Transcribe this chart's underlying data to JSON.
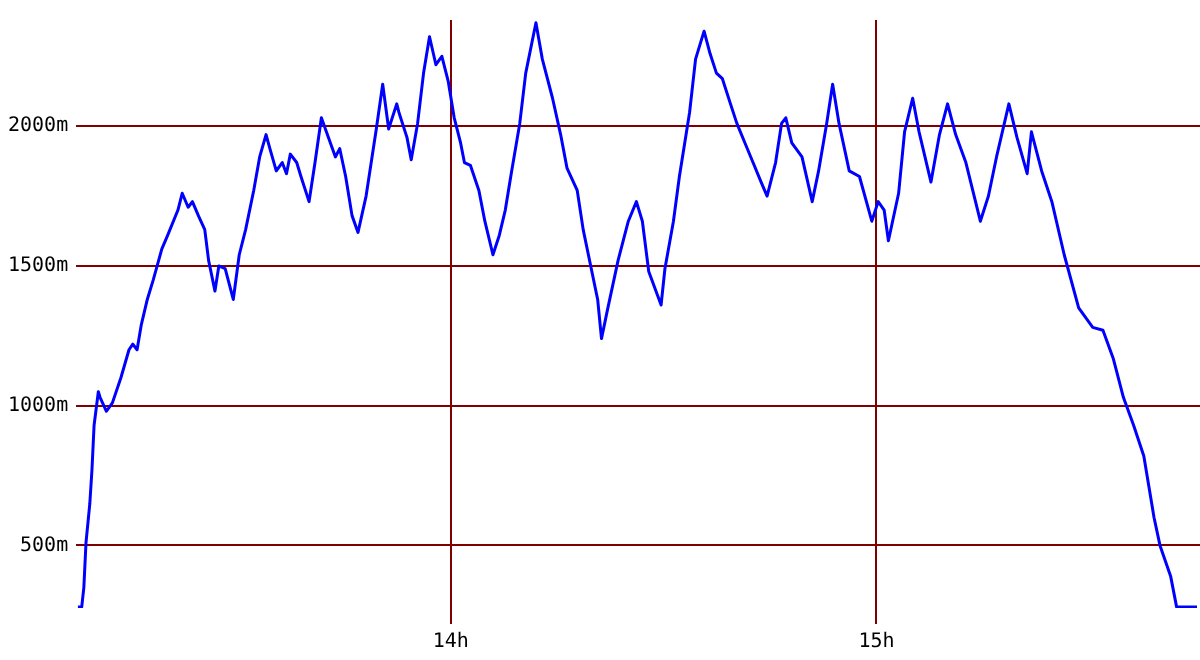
{
  "chart_data": {
    "type": "line",
    "xlim": [
      13.12,
      15.76
    ],
    "ylim": [
      276,
      2380
    ],
    "xticks": [
      {
        "value": 14,
        "label": "14h"
      },
      {
        "value": 15,
        "label": "15h"
      }
    ],
    "yticks": [
      {
        "value": 500,
        "label": "500m"
      },
      {
        "value": 1000,
        "label": "1000m"
      },
      {
        "value": 1500,
        "label": "1500m"
      },
      {
        "value": 2000,
        "label": "2000m"
      }
    ],
    "grid": true,
    "legend": false,
    "marker": "none",
    "line_style": "solid",
    "series": [
      {
        "color": "#0000ff",
        "x": [
          13.124,
          13.133,
          13.138,
          13.143,
          13.152,
          13.157,
          13.162,
          13.172,
          13.176,
          13.191,
          13.205,
          13.225,
          13.244,
          13.253,
          13.263,
          13.273,
          13.287,
          13.301,
          13.321,
          13.335,
          13.359,
          13.369,
          13.383,
          13.393,
          13.407,
          13.422,
          13.431,
          13.446,
          13.455,
          13.47,
          13.489,
          13.503,
          13.518,
          13.537,
          13.551,
          13.566,
          13.575,
          13.59,
          13.604,
          13.614,
          13.623,
          13.638,
          13.648,
          13.667,
          13.681,
          13.696,
          13.71,
          13.729,
          13.739,
          13.753,
          13.768,
          13.782,
          13.801,
          13.825,
          13.84,
          13.854,
          13.873,
          13.878,
          13.897,
          13.907,
          13.922,
          13.936,
          13.95,
          13.965,
          13.979,
          13.994,
          14.008,
          14.023,
          14.032,
          14.046,
          14.066,
          14.08,
          14.099,
          14.114,
          14.128,
          14.143,
          14.162,
          14.176,
          14.2,
          14.215,
          14.239,
          14.258,
          14.273,
          14.297,
          14.311,
          14.33,
          14.345,
          14.354,
          14.369,
          14.393,
          14.417,
          14.436,
          14.45,
          14.465,
          14.494,
          14.503,
          14.523,
          14.537,
          14.561,
          14.575,
          14.595,
          14.609,
          14.624,
          14.638,
          14.657,
          14.672,
          14.691,
          14.71,
          14.729,
          14.743,
          14.763,
          14.777,
          14.787,
          14.801,
          14.825,
          14.849,
          14.864,
          14.883,
          14.897,
          14.912,
          14.936,
          14.96,
          14.989,
          15.004,
          15.018,
          15.028,
          15.052,
          15.066,
          15.085,
          15.1,
          15.128,
          15.148,
          15.167,
          15.186,
          15.21,
          15.244,
          15.263,
          15.282,
          15.311,
          15.33,
          15.354,
          15.364,
          15.388,
          15.412,
          15.441,
          15.475,
          15.508,
          15.532,
          15.556,
          15.58,
          15.604,
          15.628,
          15.652,
          15.666,
          15.691,
          15.705,
          15.753
        ],
        "values": [
          280,
          280,
          350,
          510,
          650,
          770,
          930,
          1050,
          1030,
          980,
          1010,
          1100,
          1200,
          1220,
          1200,
          1290,
          1380,
          1450,
          1560,
          1610,
          1700,
          1760,
          1710,
          1730,
          1680,
          1630,
          1520,
          1410,
          1500,
          1490,
          1380,
          1540,
          1630,
          1770,
          1890,
          1970,
          1920,
          1840,
          1870,
          1830,
          1900,
          1870,
          1820,
          1730,
          1870,
          2030,
          1970,
          1890,
          1920,
          1820,
          1680,
          1620,
          1750,
          1990,
          2150,
          1990,
          2080,
          2050,
          1960,
          1880,
          2010,
          2190,
          2320,
          2220,
          2250,
          2160,
          2030,
          1940,
          1870,
          1860,
          1770,
          1660,
          1540,
          1610,
          1700,
          1840,
          2010,
          2190,
          2370,
          2240,
          2100,
          1970,
          1850,
          1770,
          1630,
          1490,
          1380,
          1240,
          1350,
          1520,
          1660,
          1730,
          1660,
          1480,
          1360,
          1490,
          1660,
          1820,
          2050,
          2240,
          2340,
          2260,
          2190,
          2170,
          2080,
          2010,
          1940,
          1870,
          1800,
          1750,
          1870,
          2010,
          2030,
          1940,
          1890,
          1730,
          1840,
          2010,
          2150,
          2010,
          1840,
          1820,
          1660,
          1730,
          1700,
          1590,
          1760,
          1980,
          2100,
          1980,
          1800,
          1970,
          2080,
          1970,
          1870,
          1660,
          1750,
          1890,
          2080,
          1960,
          1830,
          1980,
          1840,
          1730,
          1540,
          1350,
          1280,
          1270,
          1170,
          1030,
          930,
          820,
          600,
          500,
          390,
          280,
          280
        ]
      }
    ]
  }
}
